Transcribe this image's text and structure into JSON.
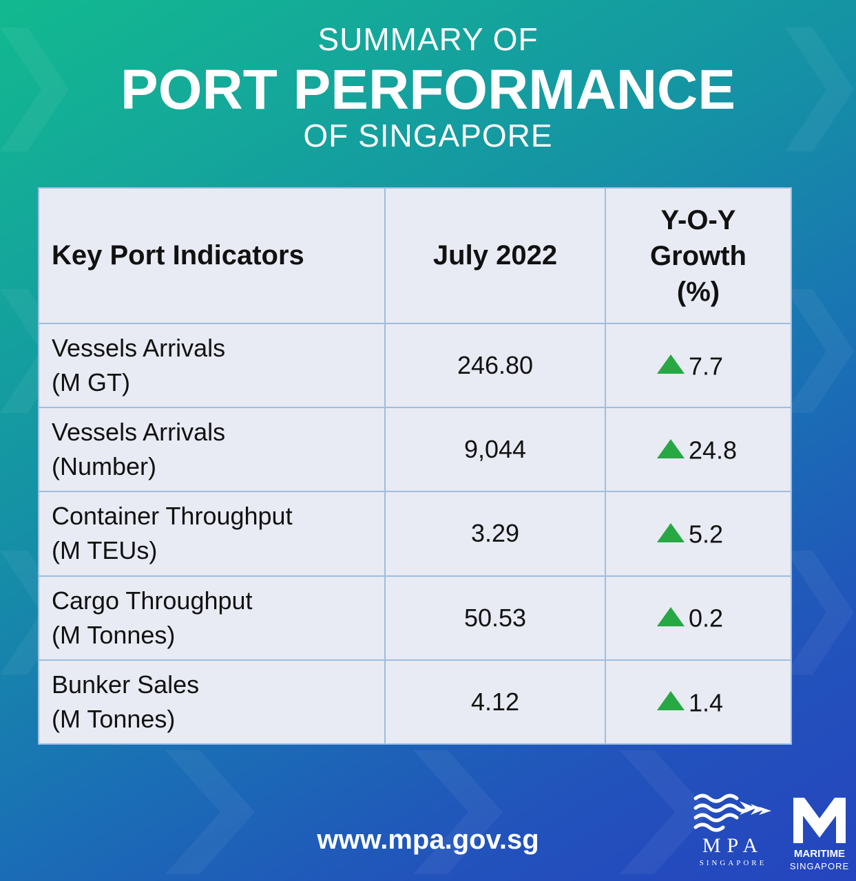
{
  "colors": {
    "background_start": "#12b98f",
    "background_end": "#2544bf",
    "table_background": "#e8eaf4",
    "table_border": "#9dbde0",
    "up_arrow": "#27a844",
    "title_text": "#ffffff"
  },
  "title": {
    "line1": "SUMMARY OF",
    "line2": "PORT PERFORMANCE",
    "line3": "OF SINGAPORE"
  },
  "table": {
    "headers": {
      "indicator": "Key Port Indicators",
      "period": "July 2022",
      "growth_line1": "Y-O-Y",
      "growth_line2": "Growth",
      "growth_line3": "(%)"
    },
    "rows": [
      {
        "label": "Vessels Arrivals",
        "unit": "(M GT)",
        "value": "246.80",
        "growth": "7.7",
        "trend_icon": "up-triangle-icon"
      },
      {
        "label": "Vessels Arrivals",
        "unit": "(Number)",
        "value": "9,044",
        "growth": "24.8",
        "trend_icon": "up-triangle-icon"
      },
      {
        "label": "Container Throughput",
        "unit": "(M TEUs)",
        "value": "3.29",
        "growth": "5.2",
        "trend_icon": "up-triangle-icon"
      },
      {
        "label": "Cargo Throughput",
        "unit": "(M Tonnes)",
        "value": "50.53",
        "growth": "0.2",
        "trend_icon": "up-triangle-icon"
      },
      {
        "label": "Bunker Sales",
        "unit": "(M Tonnes)",
        "value": "4.12",
        "growth": "1.4",
        "trend_icon": "up-triangle-icon"
      }
    ]
  },
  "footer": {
    "website": "www.mpa.gov.sg",
    "mpa_logo": {
      "name": "MPA",
      "sub": "SINGAPORE",
      "icon": "wave-fish-logo-icon"
    },
    "maritime_logo": {
      "line1": "MARITIME",
      "line2": "SINGAPORE",
      "icon": "maritime-m-logo-icon"
    }
  }
}
